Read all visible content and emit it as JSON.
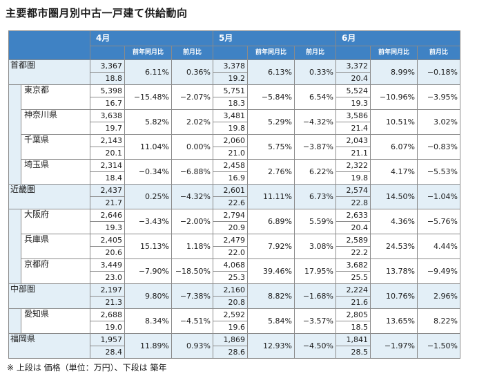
{
  "title": "主要都市圏月別中古一戸建て供給動向",
  "months": [
    "4月",
    "5月",
    "6月"
  ],
  "sub_headers": {
    "yoy": "前年同月比",
    "mom": "前月比"
  },
  "rows": [
    {
      "name": "首都圏",
      "level": "major",
      "data": [
        {
          "price": "3,367",
          "age": "18.8",
          "yoy": "6.11%",
          "mom": "0.36%"
        },
        {
          "price": "3,378",
          "age": "19.2",
          "yoy": "6.13%",
          "mom": "0.33%"
        },
        {
          "price": "3,372",
          "age": "20.4",
          "yoy": "8.99%",
          "mom": "−0.18%"
        }
      ]
    },
    {
      "name": "東京都",
      "level": "minor",
      "data": [
        {
          "price": "5,398",
          "age": "16.7",
          "yoy": "−15.48%",
          "mom": "−2.07%"
        },
        {
          "price": "5,751",
          "age": "18.3",
          "yoy": "−5.84%",
          "mom": "6.54%"
        },
        {
          "price": "5,524",
          "age": "19.3",
          "yoy": "−10.96%",
          "mom": "−3.95%"
        }
      ]
    },
    {
      "name": "神奈川県",
      "level": "minor",
      "data": [
        {
          "price": "3,638",
          "age": "19.7",
          "yoy": "5.82%",
          "mom": "2.02%"
        },
        {
          "price": "3,481",
          "age": "19.8",
          "yoy": "5.29%",
          "mom": "−4.32%"
        },
        {
          "price": "3,586",
          "age": "21.4",
          "yoy": "10.51%",
          "mom": "3.02%"
        }
      ]
    },
    {
      "name": "千葉県",
      "level": "minor",
      "data": [
        {
          "price": "2,143",
          "age": "20.1",
          "yoy": "11.04%",
          "mom": "0.00%"
        },
        {
          "price": "2,060",
          "age": "21.0",
          "yoy": "5.75%",
          "mom": "−3.87%"
        },
        {
          "price": "2,043",
          "age": "21.1",
          "yoy": "6.07%",
          "mom": "−0.83%"
        }
      ]
    },
    {
      "name": "埼玉県",
      "level": "minor",
      "data": [
        {
          "price": "2,314",
          "age": "18.4",
          "yoy": "−0.34%",
          "mom": "−6.88%"
        },
        {
          "price": "2,458",
          "age": "16.9",
          "yoy": "2.76%",
          "mom": "6.22%"
        },
        {
          "price": "2,322",
          "age": "19.8",
          "yoy": "4.17%",
          "mom": "−5.53%"
        }
      ]
    },
    {
      "name": "近畿圏",
      "level": "major",
      "data": [
        {
          "price": "2,437",
          "age": "21.7",
          "yoy": "0.25%",
          "mom": "−4.32%"
        },
        {
          "price": "2,601",
          "age": "22.6",
          "yoy": "11.11%",
          "mom": "6.73%"
        },
        {
          "price": "2,574",
          "age": "22.8",
          "yoy": "14.50%",
          "mom": "−1.04%"
        }
      ]
    },
    {
      "name": "大阪府",
      "level": "minor",
      "data": [
        {
          "price": "2,646",
          "age": "19.3",
          "yoy": "−3.43%",
          "mom": "−2.00%"
        },
        {
          "price": "2,794",
          "age": "20.9",
          "yoy": "6.89%",
          "mom": "5.59%"
        },
        {
          "price": "2,633",
          "age": "20.4",
          "yoy": "4.36%",
          "mom": "−5.76%"
        }
      ]
    },
    {
      "name": "兵庫県",
      "level": "minor",
      "data": [
        {
          "price": "2,405",
          "age": "20.6",
          "yoy": "15.13%",
          "mom": "1.18%"
        },
        {
          "price": "2,479",
          "age": "22.0",
          "yoy": "7.92%",
          "mom": "3.08%"
        },
        {
          "price": "2,589",
          "age": "22.2",
          "yoy": "24.53%",
          "mom": "4.44%"
        }
      ]
    },
    {
      "name": "京都府",
      "level": "minor",
      "data": [
        {
          "price": "3,449",
          "age": "23.0",
          "yoy": "−7.90%",
          "mom": "−18.50%"
        },
        {
          "price": "4,068",
          "age": "25.3",
          "yoy": "39.46%",
          "mom": "17.95%"
        },
        {
          "price": "3,682",
          "age": "25.5",
          "yoy": "13.78%",
          "mom": "−9.49%"
        }
      ]
    },
    {
      "name": "中部圏",
      "level": "major",
      "data": [
        {
          "price": "2,197",
          "age": "21.3",
          "yoy": "9.80%",
          "mom": "−7.38%"
        },
        {
          "price": "2,160",
          "age": "20.8",
          "yoy": "8.82%",
          "mom": "−1.68%"
        },
        {
          "price": "2,224",
          "age": "21.6",
          "yoy": "10.76%",
          "mom": "2.96%"
        }
      ]
    },
    {
      "name": "愛知県",
      "level": "minor",
      "data": [
        {
          "price": "2,688",
          "age": "19.0",
          "yoy": "8.34%",
          "mom": "−4.51%"
        },
        {
          "price": "2,592",
          "age": "19.6",
          "yoy": "5.84%",
          "mom": "−3.57%"
        },
        {
          "price": "2,805",
          "age": "18.5",
          "yoy": "13.65%",
          "mom": "8.22%"
        }
      ]
    },
    {
      "name": "福岡県",
      "level": "major",
      "data": [
        {
          "price": "1,957",
          "age": "28.4",
          "yoy": "11.89%",
          "mom": "0.93%"
        },
        {
          "price": "1,869",
          "age": "28.6",
          "yoy": "12.93%",
          "mom": "−4.50%"
        },
        {
          "price": "1,841",
          "age": "28.5",
          "yoy": "−1.97%",
          "mom": "−1.50%"
        }
      ]
    }
  ],
  "note": "※ 上段は 価格（単位：万円）、下段は 築年"
}
